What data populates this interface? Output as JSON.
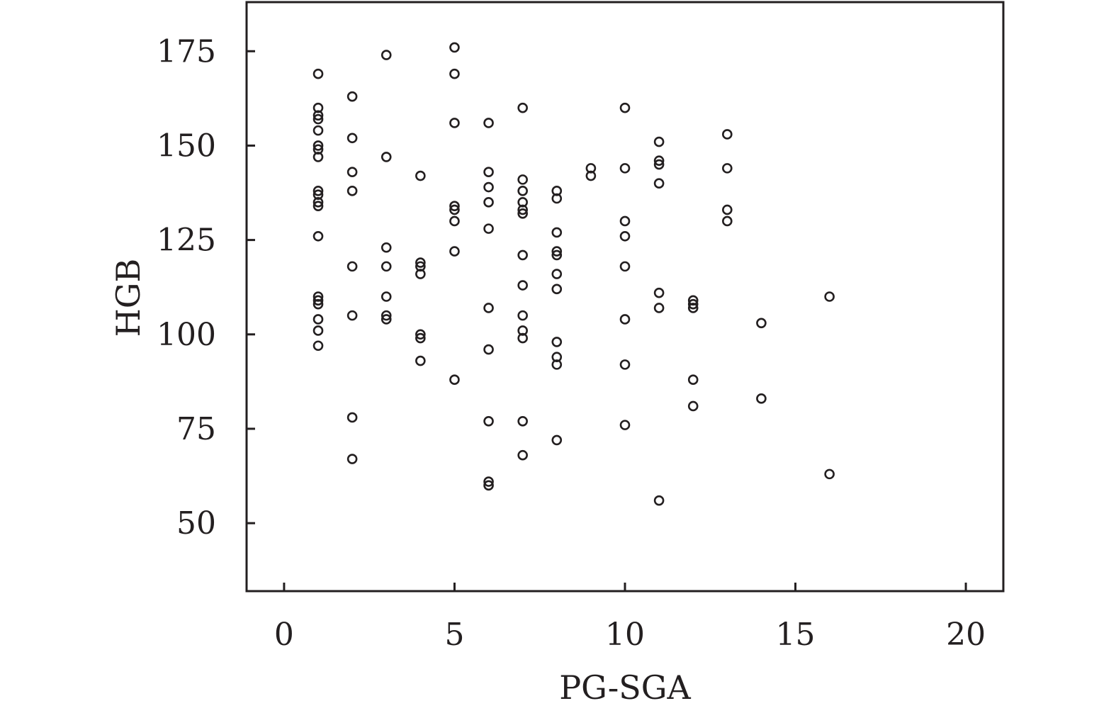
{
  "chart_data": {
    "type": "scatter",
    "xlabel": "PG-SGA",
    "ylabel": "HGB",
    "xlim": [
      -1.1,
      21.1
    ],
    "ylim": [
      32,
      188
    ],
    "x_ticks": [
      0,
      5,
      10,
      15,
      20
    ],
    "y_ticks": [
      50,
      75,
      100,
      125,
      150,
      175
    ],
    "x_tick_labels": [
      "0",
      "5",
      "10",
      "15",
      "20"
    ],
    "y_tick_labels": [
      "50",
      "75",
      "100",
      "125",
      "150",
      "175"
    ],
    "marker": "open-circle",
    "color": "#231f20",
    "grid": false,
    "points": [
      {
        "x": 1,
        "y": 169
      },
      {
        "x": 1,
        "y": 160
      },
      {
        "x": 1,
        "y": 158
      },
      {
        "x": 1,
        "y": 157
      },
      {
        "x": 1,
        "y": 154
      },
      {
        "x": 1,
        "y": 150
      },
      {
        "x": 1,
        "y": 149
      },
      {
        "x": 1,
        "y": 147
      },
      {
        "x": 1,
        "y": 138
      },
      {
        "x": 1,
        "y": 137
      },
      {
        "x": 1,
        "y": 135
      },
      {
        "x": 1,
        "y": 134
      },
      {
        "x": 1,
        "y": 126
      },
      {
        "x": 1,
        "y": 110
      },
      {
        "x": 1,
        "y": 109
      },
      {
        "x": 1,
        "y": 108
      },
      {
        "x": 1,
        "y": 104
      },
      {
        "x": 1,
        "y": 101
      },
      {
        "x": 1,
        "y": 97
      },
      {
        "x": 2,
        "y": 163
      },
      {
        "x": 2,
        "y": 152
      },
      {
        "x": 2,
        "y": 143
      },
      {
        "x": 2,
        "y": 138
      },
      {
        "x": 2,
        "y": 118
      },
      {
        "x": 2,
        "y": 105
      },
      {
        "x": 2,
        "y": 78
      },
      {
        "x": 2,
        "y": 67
      },
      {
        "x": 3,
        "y": 174
      },
      {
        "x": 3,
        "y": 147
      },
      {
        "x": 3,
        "y": 123
      },
      {
        "x": 3,
        "y": 118
      },
      {
        "x": 3,
        "y": 110
      },
      {
        "x": 3,
        "y": 105
      },
      {
        "x": 3,
        "y": 104
      },
      {
        "x": 4,
        "y": 142
      },
      {
        "x": 4,
        "y": 119
      },
      {
        "x": 4,
        "y": 118
      },
      {
        "x": 4,
        "y": 116
      },
      {
        "x": 4,
        "y": 100
      },
      {
        "x": 4,
        "y": 99
      },
      {
        "x": 4,
        "y": 93
      },
      {
        "x": 5,
        "y": 176
      },
      {
        "x": 5,
        "y": 169
      },
      {
        "x": 5,
        "y": 156
      },
      {
        "x": 5,
        "y": 134
      },
      {
        "x": 5,
        "y": 133
      },
      {
        "x": 5,
        "y": 130
      },
      {
        "x": 5,
        "y": 122
      },
      {
        "x": 5,
        "y": 88
      },
      {
        "x": 6,
        "y": 156
      },
      {
        "x": 6,
        "y": 143
      },
      {
        "x": 6,
        "y": 139
      },
      {
        "x": 6,
        "y": 135
      },
      {
        "x": 6,
        "y": 128
      },
      {
        "x": 6,
        "y": 107
      },
      {
        "x": 6,
        "y": 96
      },
      {
        "x": 6,
        "y": 77
      },
      {
        "x": 6,
        "y": 61
      },
      {
        "x": 6,
        "y": 60
      },
      {
        "x": 7,
        "y": 160
      },
      {
        "x": 7,
        "y": 141
      },
      {
        "x": 7,
        "y": 138
      },
      {
        "x": 7,
        "y": 135
      },
      {
        "x": 7,
        "y": 133
      },
      {
        "x": 7,
        "y": 132
      },
      {
        "x": 7,
        "y": 121
      },
      {
        "x": 7,
        "y": 113
      },
      {
        "x": 7,
        "y": 105
      },
      {
        "x": 7,
        "y": 101
      },
      {
        "x": 7,
        "y": 99
      },
      {
        "x": 7,
        "y": 77
      },
      {
        "x": 7,
        "y": 68
      },
      {
        "x": 8,
        "y": 138
      },
      {
        "x": 8,
        "y": 136
      },
      {
        "x": 8,
        "y": 127
      },
      {
        "x": 8,
        "y": 122
      },
      {
        "x": 8,
        "y": 121
      },
      {
        "x": 8,
        "y": 116
      },
      {
        "x": 8,
        "y": 112
      },
      {
        "x": 8,
        "y": 98
      },
      {
        "x": 8,
        "y": 94
      },
      {
        "x": 8,
        "y": 92
      },
      {
        "x": 8,
        "y": 72
      },
      {
        "x": 9,
        "y": 144
      },
      {
        "x": 9,
        "y": 142
      },
      {
        "x": 10,
        "y": 160
      },
      {
        "x": 10,
        "y": 144
      },
      {
        "x": 10,
        "y": 130
      },
      {
        "x": 10,
        "y": 126
      },
      {
        "x": 10,
        "y": 118
      },
      {
        "x": 10,
        "y": 104
      },
      {
        "x": 10,
        "y": 92
      },
      {
        "x": 10,
        "y": 76
      },
      {
        "x": 11,
        "y": 151
      },
      {
        "x": 11,
        "y": 146
      },
      {
        "x": 11,
        "y": 145
      },
      {
        "x": 11,
        "y": 140
      },
      {
        "x": 11,
        "y": 111
      },
      {
        "x": 11,
        "y": 107
      },
      {
        "x": 11,
        "y": 56
      },
      {
        "x": 12,
        "y": 109
      },
      {
        "x": 12,
        "y": 108
      },
      {
        "x": 12,
        "y": 107
      },
      {
        "x": 12,
        "y": 88
      },
      {
        "x": 12,
        "y": 81
      },
      {
        "x": 13,
        "y": 153
      },
      {
        "x": 13,
        "y": 144
      },
      {
        "x": 13,
        "y": 133
      },
      {
        "x": 13,
        "y": 130
      },
      {
        "x": 14,
        "y": 103
      },
      {
        "x": 14,
        "y": 83
      },
      {
        "x": 16,
        "y": 110
      },
      {
        "x": 16,
        "y": 63
      }
    ]
  }
}
